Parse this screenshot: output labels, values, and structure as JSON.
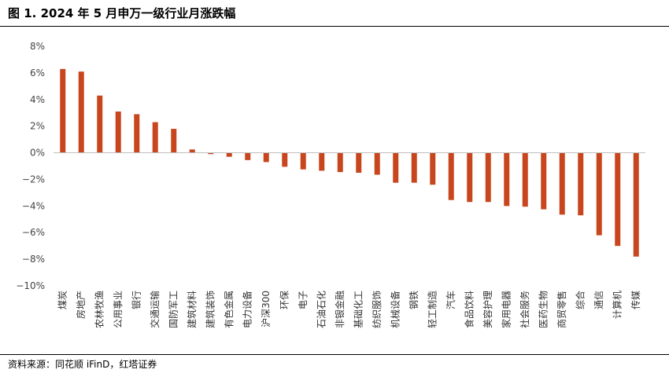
{
  "header": {
    "title": "图 1. 2024 年 5 月申万一级行业月涨跌幅"
  },
  "footer": {
    "source": "资料来源：同花顺 iFinD，红塔证券"
  },
  "colors": {
    "bar": "#C8461E",
    "axis": "#BFBFBF",
    "text": "#444444"
  },
  "chart_data": {
    "type": "bar",
    "title": "2024 年 5 月申万一级行业月涨跌幅",
    "xlabel": "",
    "ylabel": "",
    "ylim": [
      -10,
      8
    ],
    "yticks": [
      8,
      6,
      4,
      2,
      0,
      -2,
      -4,
      -6,
      -8,
      -10
    ],
    "ytick_labels": [
      "8%",
      "6%",
      "4%",
      "2%",
      "0%",
      "−2%",
      "−4%",
      "−6%",
      "−8%",
      "−10%"
    ],
    "grid": false,
    "legend": "none",
    "categories": [
      "煤炭",
      "房地产",
      "农林牧渔",
      "公用事业",
      "银行",
      "交通运输",
      "国防军工",
      "建筑材料",
      "建筑装饰",
      "有色金属",
      "电力设备",
      "沪深300",
      "环保",
      "电子",
      "石油石化",
      "非银金融",
      "基础化工",
      "纺织服饰",
      "机械设备",
      "钢铁",
      "轻工制造",
      "汽车",
      "食品饮料",
      "美容护理",
      "家用电器",
      "社会服务",
      "医药生物",
      "商贸零售",
      "综合",
      "通信",
      "计算机",
      "传媒"
    ],
    "values": [
      6.3,
      6.1,
      4.3,
      3.1,
      2.9,
      2.3,
      1.8,
      0.25,
      -0.1,
      -0.3,
      -0.55,
      -0.7,
      -1.05,
      -1.25,
      -1.35,
      -1.45,
      -1.5,
      -1.65,
      -2.25,
      -2.25,
      -2.4,
      -3.55,
      -3.7,
      -3.7,
      -4.0,
      -4.05,
      -4.25,
      -4.65,
      -4.7,
      -6.2,
      -7.0,
      -7.8
    ]
  }
}
